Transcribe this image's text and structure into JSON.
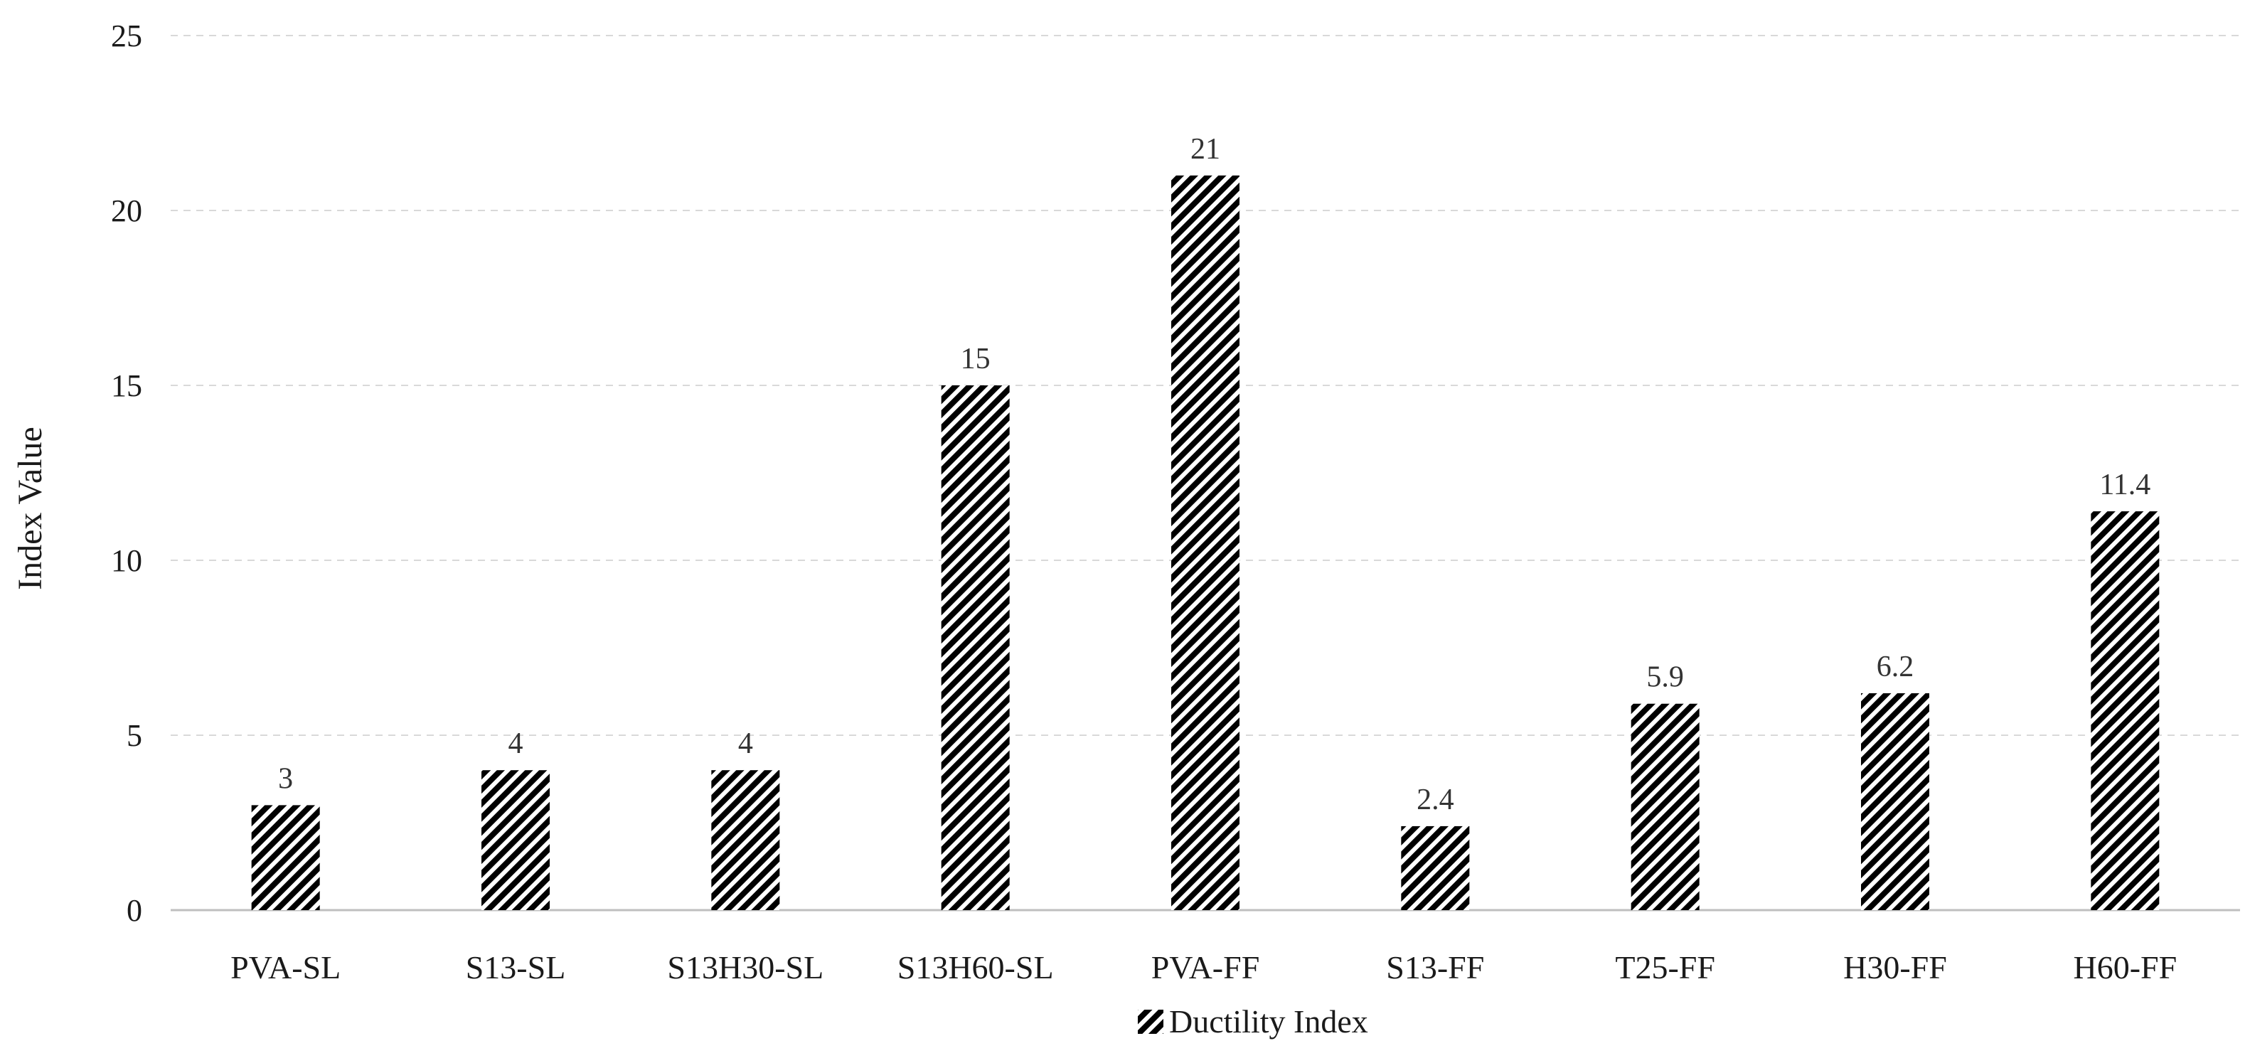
{
  "chart_data": {
    "type": "bar",
    "categories": [
      "PVA-SL",
      "S13-SL",
      "S13H30-SL",
      "S13H60-SL",
      "PVA-FF",
      "S13-FF",
      "T25-FF",
      "H30-FF",
      "H60-FF"
    ],
    "series": [
      {
        "name": "Ductility Index",
        "values": [
          3,
          4,
          4,
          15,
          21,
          2.4,
          5.9,
          6.2,
          11.4
        ],
        "data_labels": [
          "3",
          "4",
          "4",
          "15",
          "21",
          "2.4",
          "5.9",
          "6.2",
          "11.4"
        ]
      }
    ],
    "ylabel": "Index Value",
    "xlabel": "",
    "ylim": [
      0,
      25
    ],
    "yticks": [
      0,
      5,
      10,
      15,
      20,
      25
    ],
    "grid": true,
    "legend_position": "bottom",
    "bar_pattern": "diagonal-hatch",
    "bar_color": "#000000"
  }
}
